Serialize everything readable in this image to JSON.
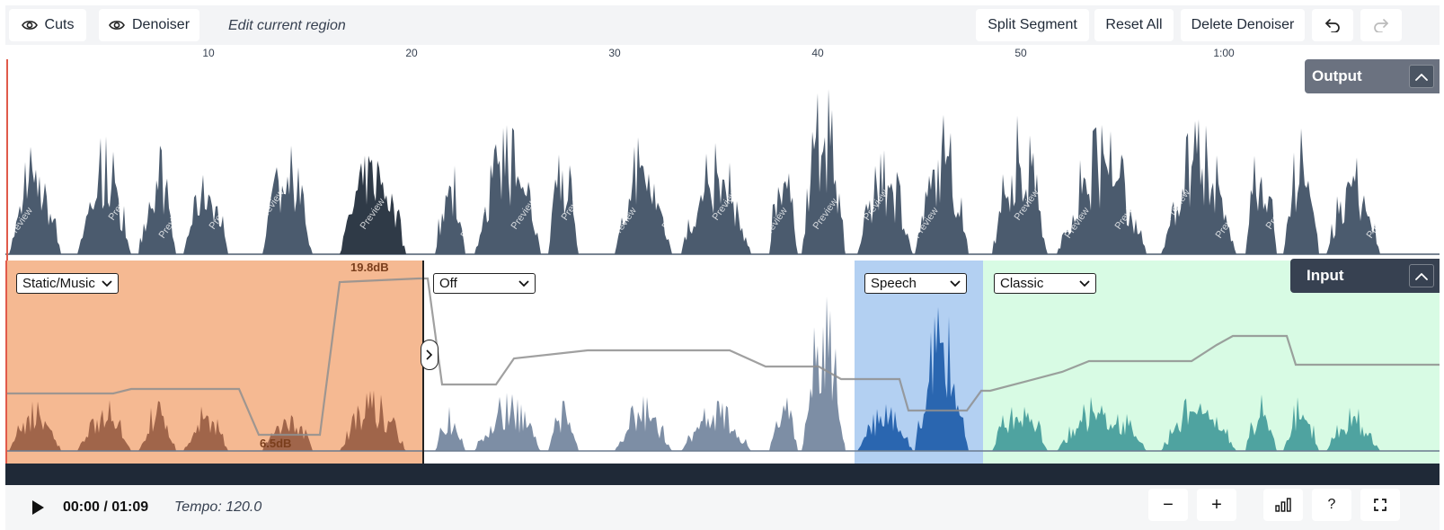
{
  "toolbar": {
    "cuts_label": "Cuts",
    "denoiser_label": "Denoiser",
    "edit_label": "Edit current region",
    "split_label": "Split Segment",
    "reset_label": "Reset All",
    "delete_label": "Delete Denoiser",
    "icons": {
      "cuts": "eye-icon",
      "denoiser": "eye-icon",
      "undo": "undo-icon",
      "redo": "redo-icon"
    }
  },
  "ruler": {
    "ticks": [
      "10",
      "20",
      "30",
      "40",
      "50",
      "1:00"
    ]
  },
  "output": {
    "tag_label": "Output",
    "watermark": "Preview"
  },
  "input": {
    "tag_label": "Input",
    "regions": [
      {
        "mode": "Static/Music",
        "color": "#f5b992",
        "db_top": "19.8dB",
        "db_bottom": "6.5dB"
      },
      {
        "mode": "Off",
        "color": "#ffffff"
      },
      {
        "mode": "Speech",
        "color": "#b3d0f2"
      },
      {
        "mode": "Classic",
        "color": "#d8fbe4"
      }
    ]
  },
  "transport": {
    "time": "00:00 / 01:09",
    "tempo": "Tempo: 120.0",
    "zoom_out_label": "−",
    "zoom_in_label": "+",
    "help_label": "?"
  },
  "colors": {
    "playhead": "#e05a4a",
    "wave_output": "#4b5b6e",
    "wave_input": "#7d8ea5",
    "accent_dark": "#1f2937"
  }
}
